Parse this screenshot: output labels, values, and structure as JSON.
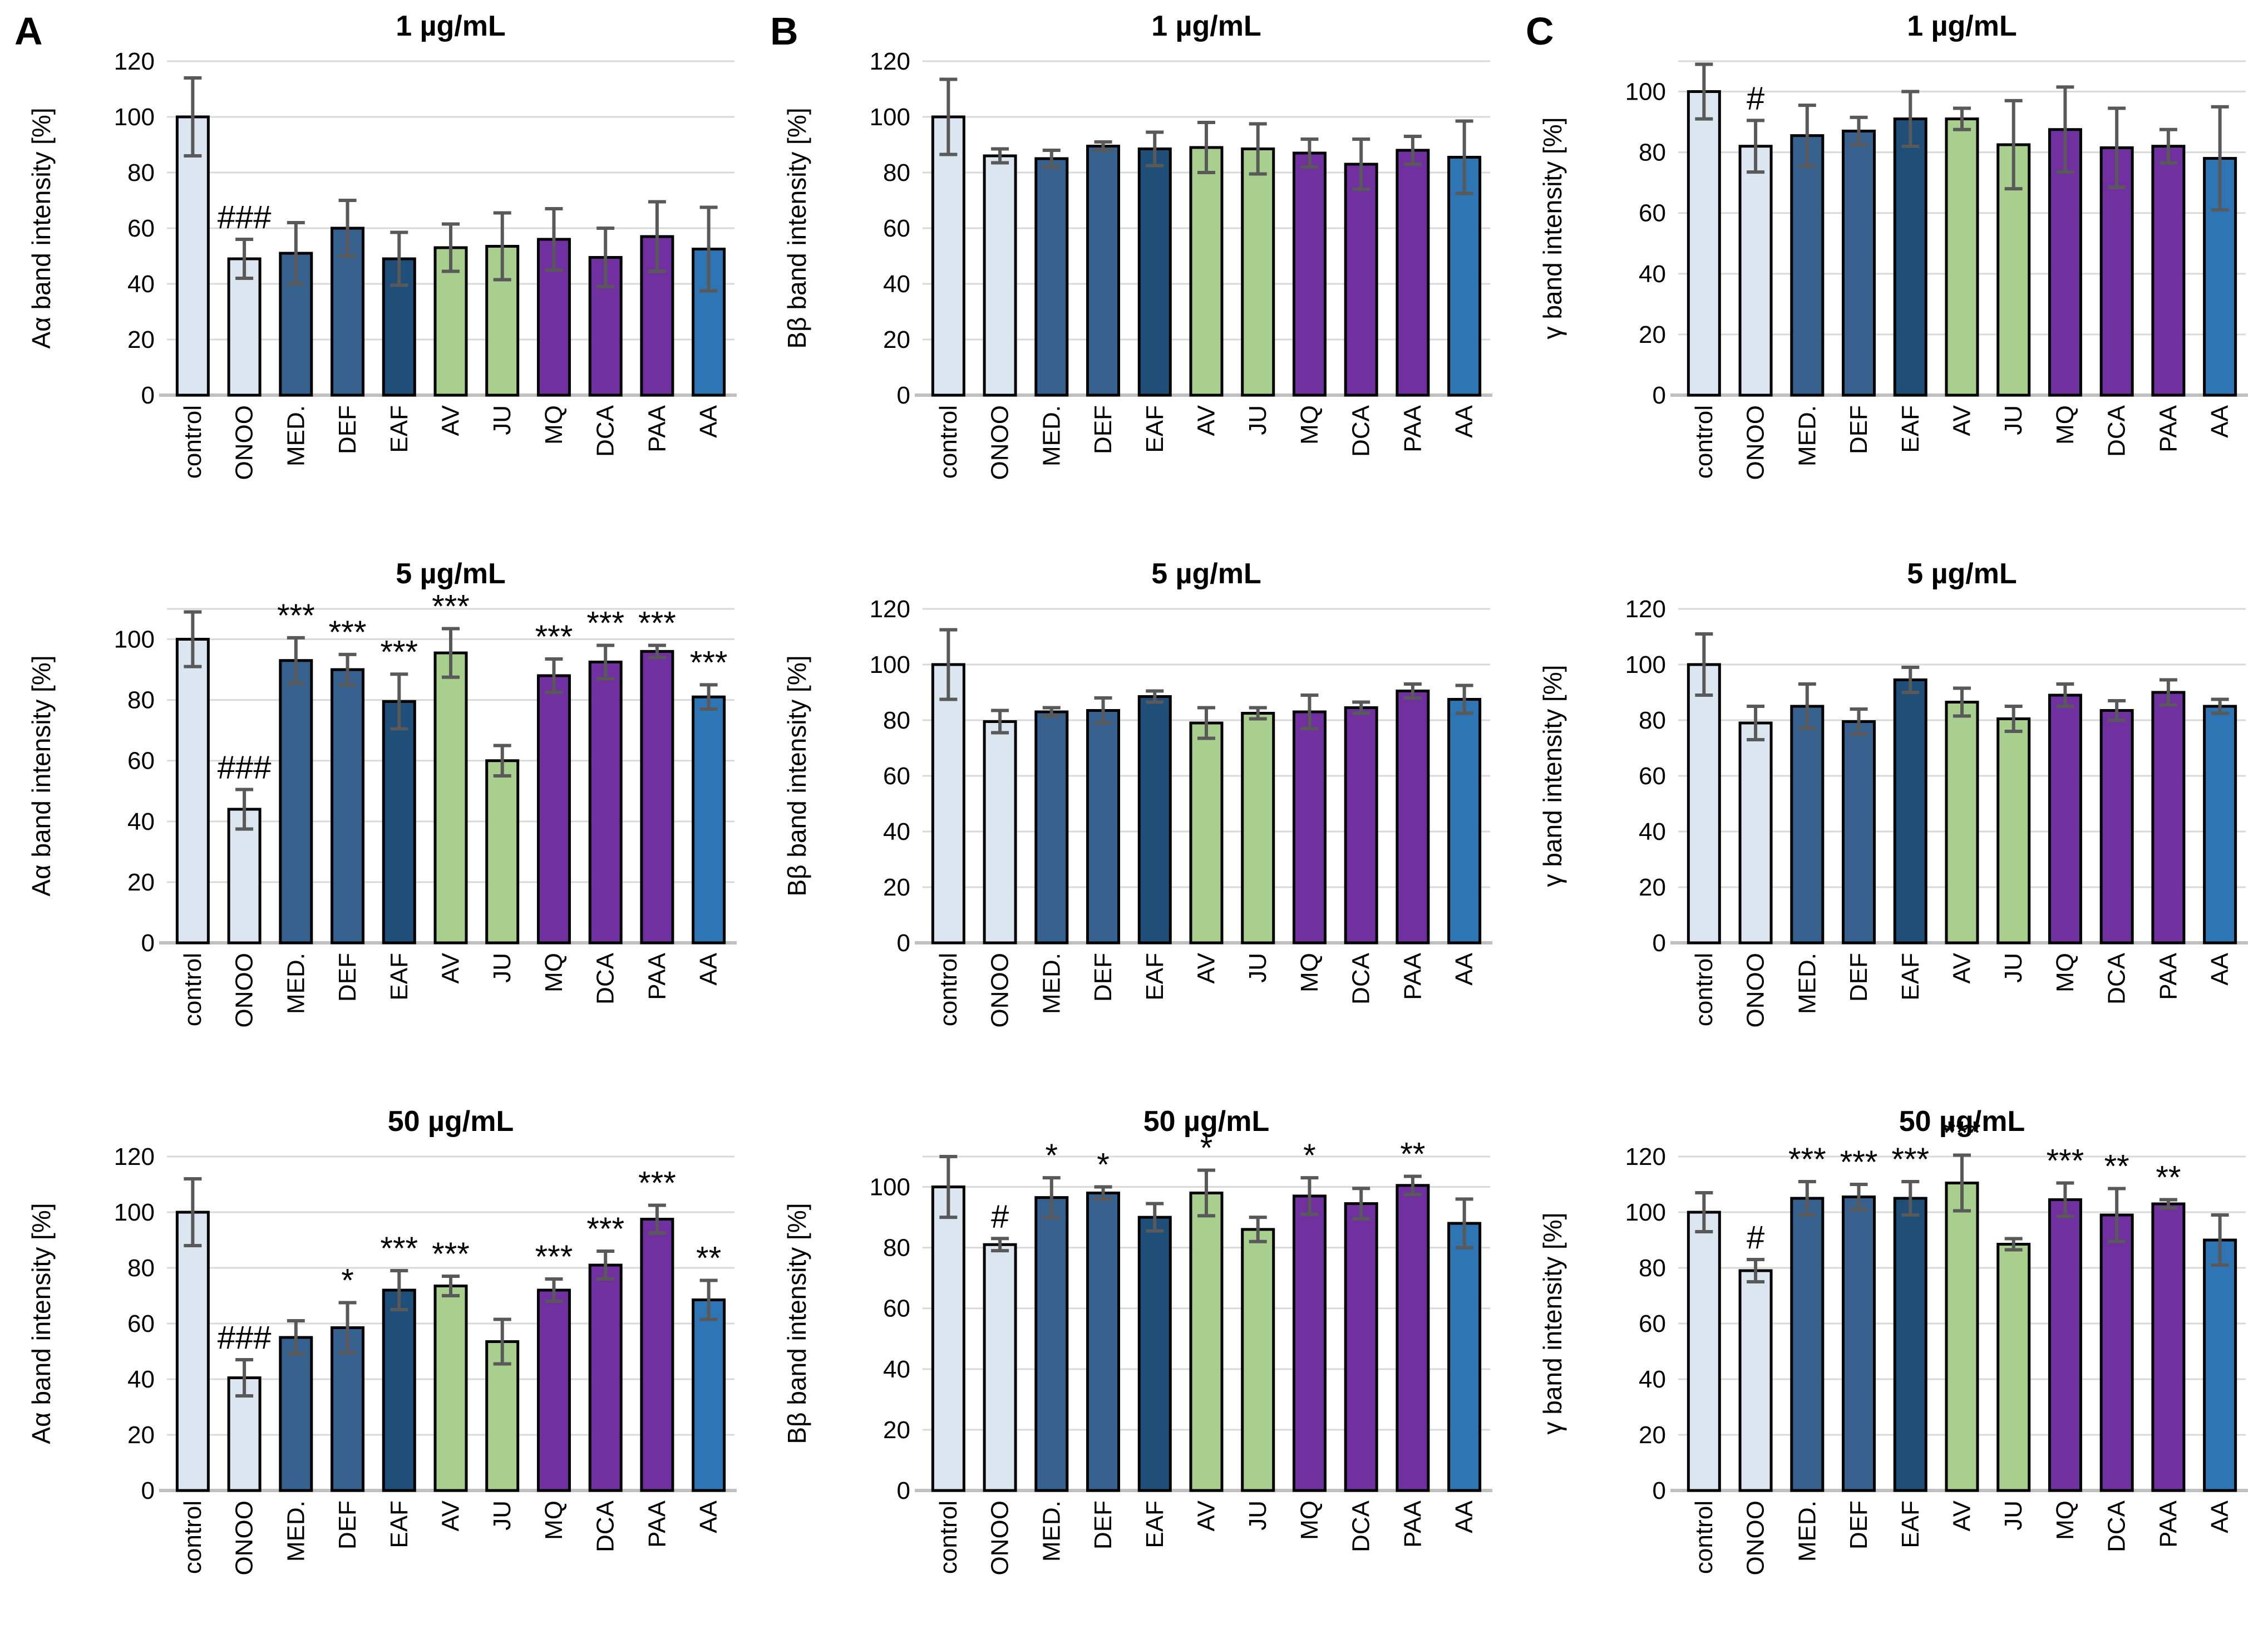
{
  "figure": {
    "description": "Nine grouped bar charts (3 columns x 3 rows). Columns: A = Aα band intensity, B = Bβ band intensity, C = γ band intensity. Rows: 1, 5 and 50 µg/mL treatments.",
    "panel_letters": [
      "A",
      "B",
      "C"
    ]
  },
  "styles": {
    "bar_colors": [
      "#dce6f1",
      "#dce6f1",
      "#36618e",
      "#36618e",
      "#1f4e79",
      "#a9cf8e",
      "#a9cf8e",
      "#7030a0",
      "#7030a0",
      "#7030a0",
      "#2e75b6"
    ],
    "bar_outline": "#000000",
    "error_color": "#595959",
    "sig_color": "#4d4d4d",
    "grid_color": "#d9d9d9",
    "baseline_color": "#bfbfbf"
  },
  "chart_data": [
    {
      "id": "A1",
      "type": "bar",
      "panel_letter": "A",
      "title": "1 µg/mL",
      "ylabel": "Aα band intensity [%]",
      "ylim": [
        0,
        120
      ],
      "yticks": [
        0,
        20,
        40,
        60,
        80,
        100,
        120
      ],
      "grid": true,
      "legend": false,
      "categories": [
        "control",
        "ONOO",
        "MED.",
        "DEF",
        "EAF",
        "AV",
        "JU",
        "MQ",
        "DCA",
        "PAA",
        "AA"
      ],
      "values": [
        100,
        49,
        51,
        60,
        49,
        53,
        53.5,
        56,
        49.5,
        57,
        52.5
      ],
      "errors": [
        14,
        7,
        11,
        10,
        9.5,
        8.5,
        12,
        11,
        10.5,
        12.5,
        15
      ],
      "sig": [
        "",
        "###",
        "",
        "",
        "",
        "",
        "",
        "",
        "",
        "",
        ""
      ]
    },
    {
      "id": "B1",
      "type": "bar",
      "panel_letter": "B",
      "title": "1 µg/mL",
      "ylabel": "Bβ band intensity [%]",
      "ylim": [
        0,
        120
      ],
      "yticks": [
        0,
        20,
        40,
        60,
        80,
        100,
        120
      ],
      "grid": true,
      "legend": false,
      "categories": [
        "control",
        "ONOO",
        "MED.",
        "DEF",
        "EAF",
        "AV",
        "JU",
        "MQ",
        "DCA",
        "PAA",
        "AA"
      ],
      "values": [
        100,
        86,
        85,
        89.5,
        88.5,
        89,
        88.5,
        87,
        83,
        88,
        85.5
      ],
      "errors": [
        13.5,
        2.5,
        3,
        1.5,
        6,
        9,
        9,
        5,
        9,
        5,
        13
      ],
      "sig": [
        "",
        "",
        "",
        "",
        "",
        "",
        "",
        "",
        "",
        "",
        ""
      ]
    },
    {
      "id": "C1",
      "type": "bar",
      "panel_letter": "C",
      "title": "1 µg/mL",
      "ylabel": "γ band intensity [%]",
      "ylim": [
        0,
        110
      ],
      "yticks": [
        0,
        20,
        40,
        60,
        80,
        100
      ],
      "grid": true,
      "legend": false,
      "categories": [
        "control",
        "ONOO",
        "MED.",
        "DEF",
        "EAF",
        "AV",
        "JU",
        "MQ",
        "DCA",
        "PAA",
        "AA"
      ],
      "values": [
        100,
        82,
        85.5,
        87,
        91,
        91,
        82.5,
        87.5,
        81.5,
        82,
        78
      ],
      "errors": [
        9,
        8.5,
        10,
        4.5,
        9,
        3.5,
        14.5,
        14,
        13,
        5.5,
        17
      ],
      "sig": [
        "",
        "#",
        "",
        "",
        "",
        "",
        "",
        "",
        "",
        "",
        ""
      ]
    },
    {
      "id": "A2",
      "type": "bar",
      "panel_letter": "",
      "title": "5 µg/mL",
      "ylabel": "Aα band intensity [%]",
      "ylim": [
        0,
        110
      ],
      "yticks": [
        0,
        20,
        40,
        60,
        80,
        100
      ],
      "grid": true,
      "legend": false,
      "categories": [
        "control",
        "ONOO",
        "MED.",
        "DEF",
        "EAF",
        "AV",
        "JU",
        "MQ",
        "DCA",
        "PAA",
        "AA"
      ],
      "values": [
        100,
        44,
        93,
        90,
        79.5,
        95.5,
        60,
        88,
        92.5,
        96,
        81
      ],
      "errors": [
        9,
        6.5,
        7.5,
        5,
        9,
        8,
        5,
        5.5,
        5.5,
        2,
        4
      ],
      "sig": [
        "",
        "###",
        "***",
        "***",
        "***",
        "***",
        "",
        "***",
        "***",
        "***",
        "***"
      ]
    },
    {
      "id": "B2",
      "type": "bar",
      "panel_letter": "",
      "title": "5 µg/mL",
      "ylabel": "Bβ band intensity [%]",
      "ylim": [
        0,
        120
      ],
      "yticks": [
        0,
        20,
        40,
        60,
        80,
        100,
        120
      ],
      "grid": true,
      "legend": false,
      "categories": [
        "control",
        "ONOO",
        "MED.",
        "DEF",
        "EAF",
        "AV",
        "JU",
        "MQ",
        "DCA",
        "PAA",
        "AA"
      ],
      "values": [
        100,
        79.5,
        83,
        83.5,
        88.5,
        79,
        82.5,
        83,
        84.5,
        90.5,
        87.5
      ],
      "errors": [
        12.5,
        4,
        1.5,
        4.5,
        2,
        5.5,
        2,
        6,
        2,
        2.5,
        5
      ],
      "sig": [
        "",
        "",
        "",
        "",
        "",
        "",
        "",
        "",
        "",
        "",
        ""
      ]
    },
    {
      "id": "C2",
      "type": "bar",
      "panel_letter": "",
      "title": "5 µg/mL",
      "ylabel": "γ band intensity [%]",
      "ylim": [
        0,
        120
      ],
      "yticks": [
        0,
        20,
        40,
        60,
        80,
        100,
        120
      ],
      "grid": true,
      "legend": false,
      "categories": [
        "control",
        "ONOO",
        "MED.",
        "DEF",
        "EAF",
        "AV",
        "JU",
        "MQ",
        "DCA",
        "PAA",
        "AA"
      ],
      "values": [
        100,
        79,
        85,
        79.5,
        94.5,
        86.5,
        80.5,
        89,
        83.5,
        90,
        85
      ],
      "errors": [
        11,
        6,
        8,
        4.5,
        4.5,
        5,
        4.5,
        4,
        3.5,
        4.5,
        2.5
      ],
      "sig": [
        "",
        "",
        "",
        "",
        "",
        "",
        "",
        "",
        "",
        "",
        ""
      ]
    },
    {
      "id": "A3",
      "type": "bar",
      "panel_letter": "",
      "title": "50 µg/mL",
      "ylabel": "Aα band intensity [%]",
      "ylim": [
        0,
        120
      ],
      "yticks": [
        0,
        20,
        40,
        60,
        80,
        100,
        120
      ],
      "grid": true,
      "legend": false,
      "categories": [
        "control",
        "ONOO",
        "MED.",
        "DEF",
        "EAF",
        "AV",
        "JU",
        "MQ",
        "DCA",
        "PAA",
        "AA"
      ],
      "values": [
        100,
        40.5,
        55,
        58.5,
        72,
        73.5,
        53.5,
        72,
        81,
        97.5,
        68.5
      ],
      "errors": [
        12,
        6.5,
        6,
        9,
        7,
        3.5,
        8,
        4,
        5,
        5,
        7
      ],
      "sig": [
        "",
        "###",
        "",
        "*",
        "***",
        "***",
        "",
        "***",
        "***",
        "***",
        "**"
      ]
    },
    {
      "id": "B3",
      "type": "bar",
      "panel_letter": "",
      "title": "50 µg/mL",
      "ylabel": "Bβ band intensity [%]",
      "ylim": [
        0,
        110
      ],
      "yticks": [
        0,
        20,
        40,
        60,
        80,
        100
      ],
      "grid": true,
      "legend": false,
      "categories": [
        "control",
        "ONOO",
        "MED.",
        "DEF",
        "EAF",
        "AV",
        "JU",
        "MQ",
        "DCA",
        "PAA",
        "AA"
      ],
      "values": [
        100,
        81,
        96.5,
        98,
        90,
        98,
        86,
        97,
        94.5,
        100.5,
        88
      ],
      "errors": [
        10,
        2,
        6.5,
        2,
        4.5,
        7.5,
        4,
        6,
        5,
        3,
        8
      ],
      "sig": [
        "",
        "#",
        "*",
        "*",
        "",
        "*",
        "",
        "*",
        "",
        "**",
        ""
      ]
    },
    {
      "id": "C3",
      "type": "bar",
      "panel_letter": "",
      "title": "50 µg/mL",
      "ylabel": "γ band intensity [%]",
      "ylim": [
        0,
        120
      ],
      "yticks": [
        0,
        20,
        40,
        60,
        80,
        100,
        120
      ],
      "grid": true,
      "legend": false,
      "categories": [
        "control",
        "ONOO",
        "MED.",
        "DEF",
        "EAF",
        "AV",
        "JU",
        "MQ",
        "DCA",
        "PAA",
        "AA"
      ],
      "values": [
        100,
        79,
        105,
        105.5,
        105,
        110.5,
        88.5,
        104.5,
        99,
        103,
        90
      ],
      "errors": [
        7,
        4,
        6,
        4.5,
        6,
        10,
        2,
        6,
        9.5,
        1.5,
        9
      ],
      "sig": [
        "",
        "#",
        "***",
        "***",
        "***",
        "***",
        "",
        "***",
        "**",
        "**",
        ""
      ]
    }
  ]
}
